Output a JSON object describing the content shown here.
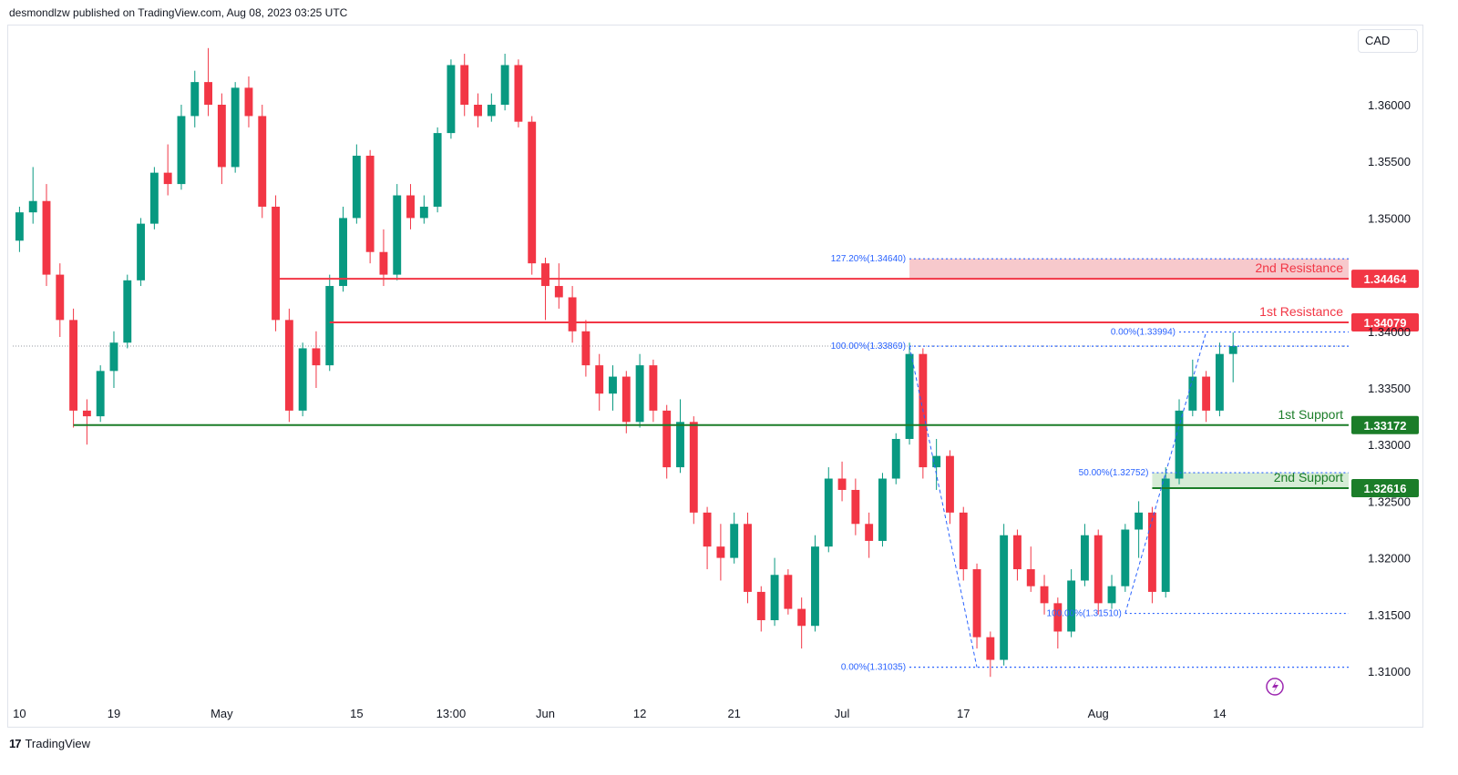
{
  "header": {
    "published_by": "desmondlzw published on TradingView.com, Aug 08, 2023 03:25 UTC"
  },
  "currency_selector": {
    "label": "CAD"
  },
  "brand": {
    "logo_mark": "17",
    "name": "TradingView"
  },
  "colors": {
    "bull": "#089981",
    "bear": "#f23645",
    "resistance": "#f23645",
    "support": "#1b7d29",
    "fib": "#2962ff",
    "resistance_zone": "#f7c9cc",
    "support_zone": "#d6ecd6",
    "replay_icon": "#9c27b0"
  },
  "chart_data": {
    "type": "candlestick",
    "title": "",
    "xlabel": "",
    "ylabel": "",
    "grid": false,
    "ylim": [
      1.3085,
      1.3665
    ],
    "y_ticks": [
      "1.36000",
      "1.35500",
      "1.35000",
      "1.34000",
      "1.33500",
      "1.33000",
      "1.32500",
      "1.32000",
      "1.31500",
      "1.31000"
    ],
    "x_ticks": [
      {
        "label": "10",
        "bar": 0
      },
      {
        "label": "19",
        "bar": 7
      },
      {
        "label": "May",
        "bar": 15
      },
      {
        "label": "15",
        "bar": 25
      },
      {
        "label": "13:00",
        "bar": 32
      },
      {
        "label": "Jun",
        "bar": 39
      },
      {
        "label": "12",
        "bar": 46
      },
      {
        "label": "21",
        "bar": 53
      },
      {
        "label": "Jul",
        "bar": 61
      },
      {
        "label": "17",
        "bar": 70
      },
      {
        "label": "Aug",
        "bar": 80
      },
      {
        "label": "14",
        "bar": 89
      }
    ],
    "last_price": 1.3387,
    "ohlc": [
      [
        1.348,
        1.351,
        1.347,
        1.3505
      ],
      [
        1.3505,
        1.3545,
        1.3495,
        1.3515
      ],
      [
        1.3515,
        1.353,
        1.344,
        1.345
      ],
      [
        1.345,
        1.346,
        1.3395,
        1.341
      ],
      [
        1.341,
        1.342,
        1.3315,
        1.333
      ],
      [
        1.333,
        1.334,
        1.33,
        1.3325
      ],
      [
        1.3325,
        1.337,
        1.332,
        1.3365
      ],
      [
        1.3365,
        1.34,
        1.335,
        1.339
      ],
      [
        1.339,
        1.345,
        1.3385,
        1.3445
      ],
      [
        1.3445,
        1.35,
        1.344,
        1.3495
      ],
      [
        1.3495,
        1.3545,
        1.349,
        1.354
      ],
      [
        1.354,
        1.3565,
        1.352,
        1.353
      ],
      [
        1.353,
        1.36,
        1.3525,
        1.359
      ],
      [
        1.359,
        1.363,
        1.358,
        1.362
      ],
      [
        1.362,
        1.365,
        1.359,
        1.36
      ],
      [
        1.36,
        1.361,
        1.353,
        1.3545
      ],
      [
        1.3545,
        1.362,
        1.354,
        1.3615
      ],
      [
        1.3615,
        1.3625,
        1.358,
        1.359
      ],
      [
        1.359,
        1.36,
        1.35,
        1.351
      ],
      [
        1.351,
        1.352,
        1.34,
        1.341
      ],
      [
        1.341,
        1.342,
        1.332,
        1.333
      ],
      [
        1.333,
        1.339,
        1.3325,
        1.3385
      ],
      [
        1.3385,
        1.34,
        1.335,
        1.337
      ],
      [
        1.337,
        1.345,
        1.3365,
        1.344
      ],
      [
        1.344,
        1.351,
        1.3435,
        1.35
      ],
      [
        1.35,
        1.3565,
        1.3495,
        1.3555
      ],
      [
        1.3555,
        1.356,
        1.346,
        1.347
      ],
      [
        1.347,
        1.349,
        1.344,
        1.345
      ],
      [
        1.345,
        1.353,
        1.3445,
        1.352
      ],
      [
        1.352,
        1.353,
        1.349,
        1.35
      ],
      [
        1.35,
        1.352,
        1.3495,
        1.351
      ],
      [
        1.351,
        1.358,
        1.3505,
        1.3575
      ],
      [
        1.3575,
        1.364,
        1.357,
        1.3635
      ],
      [
        1.3635,
        1.3645,
        1.359,
        1.36
      ],
      [
        1.36,
        1.361,
        1.358,
        1.359
      ],
      [
        1.359,
        1.361,
        1.3585,
        1.36
      ],
      [
        1.36,
        1.3645,
        1.3595,
        1.3635
      ],
      [
        1.3635,
        1.364,
        1.358,
        1.3585
      ],
      [
        1.3585,
        1.359,
        1.345,
        1.346
      ],
      [
        1.346,
        1.3465,
        1.341,
        1.344
      ],
      [
        1.344,
        1.346,
        1.342,
        1.343
      ],
      [
        1.343,
        1.344,
        1.339,
        1.34
      ],
      [
        1.34,
        1.341,
        1.336,
        1.337
      ],
      [
        1.337,
        1.338,
        1.333,
        1.3345
      ],
      [
        1.3345,
        1.337,
        1.333,
        1.336
      ],
      [
        1.336,
        1.3365,
        1.331,
        1.332
      ],
      [
        1.332,
        1.338,
        1.3315,
        1.337
      ],
      [
        1.337,
        1.3375,
        1.332,
        1.333
      ],
      [
        1.333,
        1.3335,
        1.327,
        1.328
      ],
      [
        1.328,
        1.334,
        1.3275,
        1.332
      ],
      [
        1.332,
        1.3325,
        1.323,
        1.324
      ],
      [
        1.324,
        1.3245,
        1.319,
        1.321
      ],
      [
        1.321,
        1.323,
        1.318,
        1.32
      ],
      [
        1.32,
        1.324,
        1.3195,
        1.323
      ],
      [
        1.323,
        1.324,
        1.316,
        1.317
      ],
      [
        1.317,
        1.3175,
        1.3135,
        1.3145
      ],
      [
        1.3145,
        1.32,
        1.314,
        1.3185
      ],
      [
        1.3185,
        1.319,
        1.315,
        1.3155
      ],
      [
        1.3155,
        1.3165,
        1.312,
        1.314
      ],
      [
        1.314,
        1.322,
        1.3135,
        1.321
      ],
      [
        1.321,
        1.328,
        1.3205,
        1.327
      ],
      [
        1.327,
        1.3285,
        1.325,
        1.326
      ],
      [
        1.326,
        1.327,
        1.322,
        1.323
      ],
      [
        1.323,
        1.324,
        1.32,
        1.3215
      ],
      [
        1.3215,
        1.3275,
        1.321,
        1.327
      ],
      [
        1.327,
        1.331,
        1.3265,
        1.3305
      ],
      [
        1.3305,
        1.339,
        1.33,
        1.338
      ],
      [
        1.338,
        1.3385,
        1.327,
        1.328
      ],
      [
        1.328,
        1.3305,
        1.326,
        1.329
      ],
      [
        1.329,
        1.3295,
        1.323,
        1.324
      ],
      [
        1.324,
        1.3245,
        1.318,
        1.319
      ],
      [
        1.319,
        1.3195,
        1.312,
        1.313
      ],
      [
        1.313,
        1.3135,
        1.3095,
        1.311
      ],
      [
        1.311,
        1.323,
        1.3105,
        1.322
      ],
      [
        1.322,
        1.3225,
        1.318,
        1.319
      ],
      [
        1.319,
        1.321,
        1.317,
        1.3175
      ],
      [
        1.3175,
        1.3185,
        1.315,
        1.316
      ],
      [
        1.316,
        1.3165,
        1.312,
        1.3135
      ],
      [
        1.3135,
        1.319,
        1.313,
        1.318
      ],
      [
        1.318,
        1.323,
        1.3175,
        1.322
      ],
      [
        1.322,
        1.3225,
        1.315,
        1.316
      ],
      [
        1.316,
        1.3185,
        1.3155,
        1.3175
      ],
      [
        1.3175,
        1.323,
        1.317,
        1.3225
      ],
      [
        1.3225,
        1.325,
        1.32,
        1.324
      ],
      [
        1.324,
        1.3245,
        1.316,
        1.317
      ],
      [
        1.317,
        1.328,
        1.3165,
        1.327
      ],
      [
        1.327,
        1.334,
        1.3265,
        1.333
      ],
      [
        1.333,
        1.3375,
        1.3325,
        1.336
      ],
      [
        1.336,
        1.3365,
        1.332,
        1.333
      ],
      [
        1.333,
        1.339,
        1.3325,
        1.338
      ],
      [
        1.338,
        1.3399,
        1.3355,
        1.3387
      ]
    ],
    "levels": [
      {
        "name": "2nd Resistance",
        "price_label": "1.34464",
        "price": 1.34464,
        "kind": "resistance",
        "from_bar": 19
      },
      {
        "name": "1st Resistance",
        "price_label": "1.34079",
        "price": 1.34079,
        "kind": "resistance",
        "from_bar": 23
      },
      {
        "name": "1st Support",
        "price_label": "1.33172",
        "price": 1.33172,
        "kind": "support",
        "from_bar": 4
      },
      {
        "name": "2nd Support",
        "price_label": "1.32616",
        "price": 1.32616,
        "kind": "support",
        "from_bar": 84
      }
    ],
    "fib_levels": [
      {
        "label": "127.20%(1.34640)",
        "price": 1.3464,
        "from_bar": 66
      },
      {
        "label": "100.00%(1.33869)",
        "price": 1.33869,
        "from_bar": 66
      },
      {
        "label": "0.00%(1.33994)",
        "price": 1.33994,
        "from_bar": 86
      },
      {
        "label": "50.00%(1.32752)",
        "price": 1.32752,
        "from_bar": 84
      },
      {
        "label": "100.00%(1.31510)",
        "price": 1.3151,
        "from_bar": 82
      },
      {
        "label": "0.00%(1.31035)",
        "price": 1.31035,
        "from_bar": 66
      }
    ],
    "zones": [
      {
        "kind": "resistance",
        "from_bar": 66,
        "top": 1.3464,
        "bottom": 1.34464
      },
      {
        "kind": "support",
        "from_bar": 84,
        "top": 1.32752,
        "bottom": 1.32616
      }
    ],
    "fib_swings": [
      [
        [
          66,
          1.33869
        ],
        [
          71,
          1.31035
        ]
      ],
      [
        [
          82,
          1.3151
        ],
        [
          88,
          1.33994
        ]
      ]
    ]
  }
}
